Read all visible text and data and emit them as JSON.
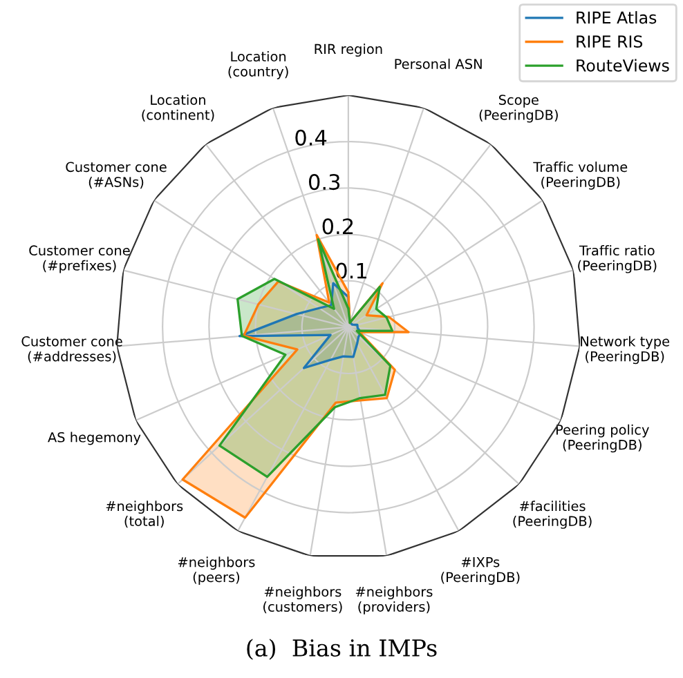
{
  "chart_data": {
    "type": "radar",
    "categories": [
      "RIR region",
      "Personal ASN",
      "Scope\n(PeeringDB)",
      "Traffic volume\n(PeeringDB)",
      "Traffic ratio\n(PeeringDB)",
      "Network type\n(PeeringDB)",
      "Peering policy\n(PeeringDB)",
      "#facilities\n(PeeringDB)",
      "#IXPs\n(PeeringDB)",
      "#neighbors\n(providers)",
      "#neighbors\n(customers)",
      "#neighbors\n(peers)",
      "#neighbors\n(total)",
      "AS hegemony",
      "Customer cone\n(#addresses)",
      "Customer cone\n(#prefixes)",
      "Customer cone\n(#ASNs)",
      "Location\n(continent)",
      "Location\n(country)"
    ],
    "series": [
      {
        "name": "RIPE Atlas",
        "color": "#1f77b4",
        "values": [
          0.065,
          0.01,
          0.01,
          0.01,
          0.02,
          0.02,
          0.03,
          0.03,
          0.04,
          0.065,
          0.064,
          0.08,
          0.13,
          0.042,
          0.235,
          0.115,
          0.075,
          0.06,
          0.1
        ]
      },
      {
        "name": "RIPE RIS",
        "color": "#ff7f0e",
        "values": [
          0.075,
          0.01,
          0.12,
          0.047,
          0.09,
          0.13,
          0.026,
          0.136,
          0.174,
          0.16,
          0.165,
          0.467,
          0.485,
          0.12,
          0.226,
          0.2,
          0.18,
          0.067,
          0.21
        ]
      },
      {
        "name": "RouteViews",
        "color": "#2ca02c",
        "values": [
          0.04,
          0.01,
          0.11,
          0.072,
          0.085,
          0.095,
          0.02,
          0.123,
          0.166,
          0.155,
          0.175,
          0.367,
          0.377,
          0.148,
          0.23,
          0.246,
          0.19,
          0.05,
          0.2
        ]
      }
    ],
    "ylim": [
      0,
      0.5
    ],
    "yticks": [
      0.1,
      0.2,
      0.3,
      0.4
    ],
    "grid": true,
    "legend": "top right",
    "annotations": [
      "(a)  Bias in IMPs"
    ]
  }
}
